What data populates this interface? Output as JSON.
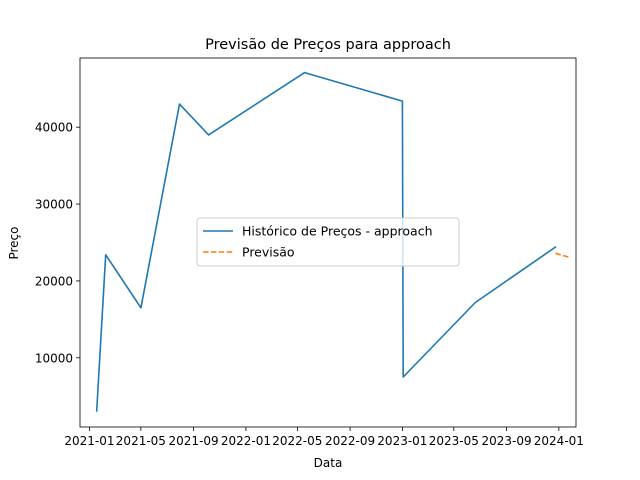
{
  "chart_data": {
    "type": "line",
    "title": "Previsão de Preços para approach",
    "xlabel": "Data",
    "ylabel": "Preço",
    "x_tick_labels": [
      "2021-01",
      "2021-05",
      "2021-09",
      "2022-01",
      "2022-05",
      "2022-09",
      "2023-01",
      "2023-05",
      "2023-09",
      "2024-01"
    ],
    "x_ticks": [
      "2021-01-01",
      "2021-05-01",
      "2021-09-01",
      "2022-01-01",
      "2022-05-01",
      "2022-09-01",
      "2023-01-01",
      "2023-05-01",
      "2023-09-01",
      "2024-01-01"
    ],
    "y_ticks": [
      10000,
      20000,
      30000,
      40000
    ],
    "y_tick_labels": [
      "10000",
      "20000",
      "30000",
      "40000"
    ],
    "xlim": [
      "2020-12-10",
      "2024-02-10"
    ],
    "ylim": [
      1000,
      49000
    ],
    "grid": false,
    "legend_position": "center",
    "series": [
      {
        "name": "Histórico de Preços - approach",
        "color": "#1f77b4",
        "style": "solid",
        "x": [
          "2021-01-18",
          "2021-02-08",
          "2021-05-01",
          "2021-07-30",
          "2021-10-06",
          "2022-05-18",
          "2023-01-01",
          "2023-01-03",
          "2023-06-20",
          "2023-12-24"
        ],
        "y": [
          3100,
          23400,
          16500,
          43000,
          39000,
          47100,
          43400,
          7500,
          17200,
          24400
        ]
      },
      {
        "name": "Previsão",
        "color": "#ff7f0e",
        "style": "dashed",
        "x": [
          "2023-12-24",
          "2024-01-24"
        ],
        "y": [
          23600,
          23100
        ]
      }
    ]
  }
}
